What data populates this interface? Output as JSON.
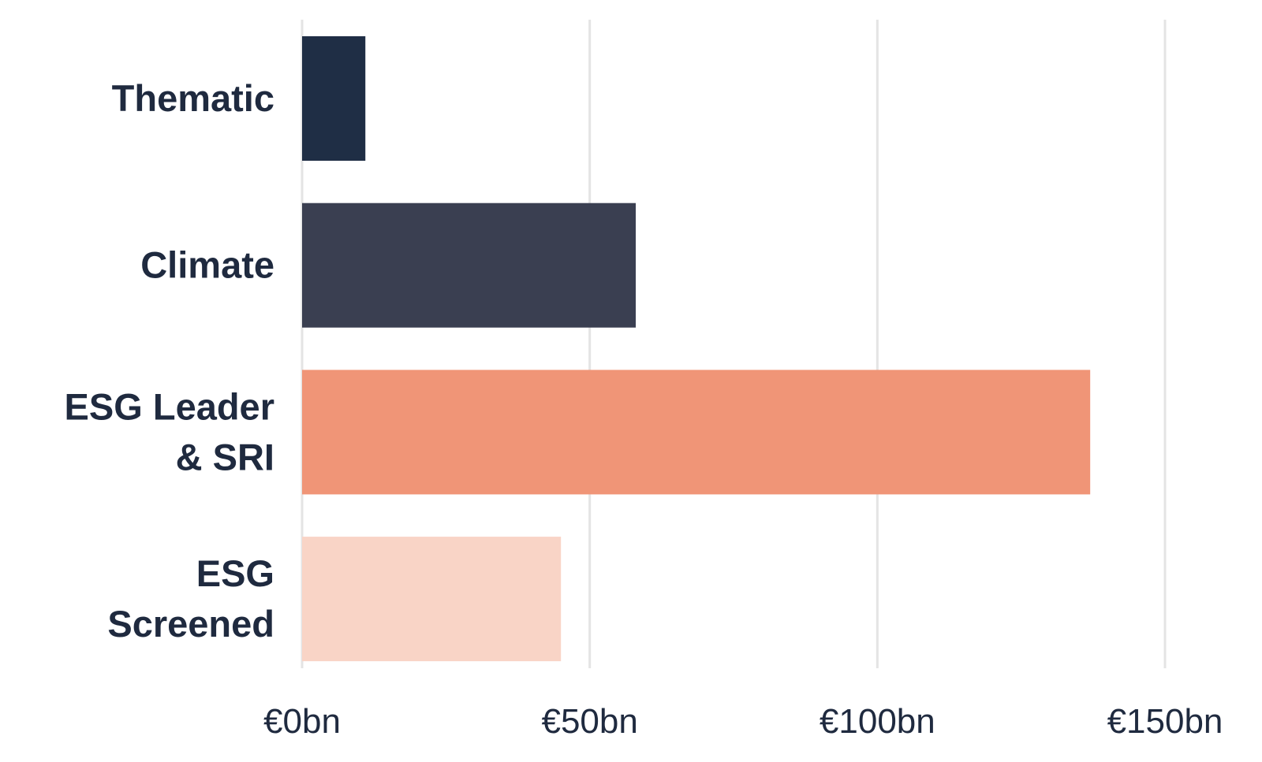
{
  "chart_data": {
    "type": "bar",
    "orientation": "horizontal",
    "categories": [
      "Thematic",
      "Climate",
      "ESG Leader & SRI",
      "ESG Screened"
    ],
    "category_label_lines": [
      [
        "Thematic"
      ],
      [
        "Climate"
      ],
      [
        "ESG Leader",
        "& SRI"
      ],
      [
        "ESG",
        "Screened"
      ]
    ],
    "values": [
      11,
      58,
      137,
      45
    ],
    "colors": [
      "#1f2e45",
      "#3a3f51",
      "#f09577",
      "#f9d4c6"
    ],
    "xlim": [
      0,
      150
    ],
    "xticks": [
      0,
      50,
      100,
      150
    ],
    "xtick_labels": [
      "€0bn",
      "€50bn",
      "€100bn",
      "€150bn"
    ],
    "grid": true,
    "legend": "none",
    "title": "",
    "xlabel": "",
    "ylabel": ""
  }
}
